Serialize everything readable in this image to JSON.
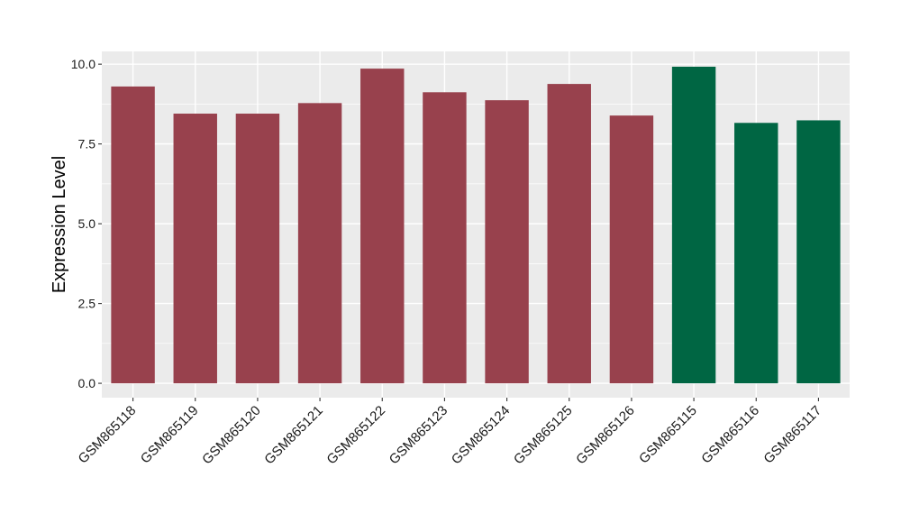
{
  "chart_data": {
    "type": "bar",
    "title": "",
    "xlabel": "",
    "ylabel": "Expression Level",
    "ylim": [
      -0.45,
      10.4
    ],
    "yticks": [
      0.0,
      2.5,
      5.0,
      7.5,
      10.0
    ],
    "ytick_labels": [
      "0.0",
      "2.5",
      "5.0",
      "7.5",
      "10.0"
    ],
    "grid": true,
    "legend": "none",
    "categories": [
      "GSM865118",
      "GSM865119",
      "GSM865120",
      "GSM865121",
      "GSM865122",
      "GSM865123",
      "GSM865124",
      "GSM865125",
      "GSM865126",
      "GSM865115",
      "GSM865116",
      "GSM865117"
    ],
    "values": [
      9.3,
      8.45,
      8.45,
      8.78,
      9.86,
      9.12,
      8.87,
      9.38,
      8.39,
      9.92,
      8.16,
      8.24
    ],
    "bar_colors": [
      "#98414d",
      "#98414d",
      "#98414d",
      "#98414d",
      "#98414d",
      "#98414d",
      "#98414d",
      "#98414d",
      "#98414d",
      "#006643",
      "#006643",
      "#006643"
    ],
    "panel_background": "#ebebeb",
    "grid_color": "#ffffff"
  }
}
